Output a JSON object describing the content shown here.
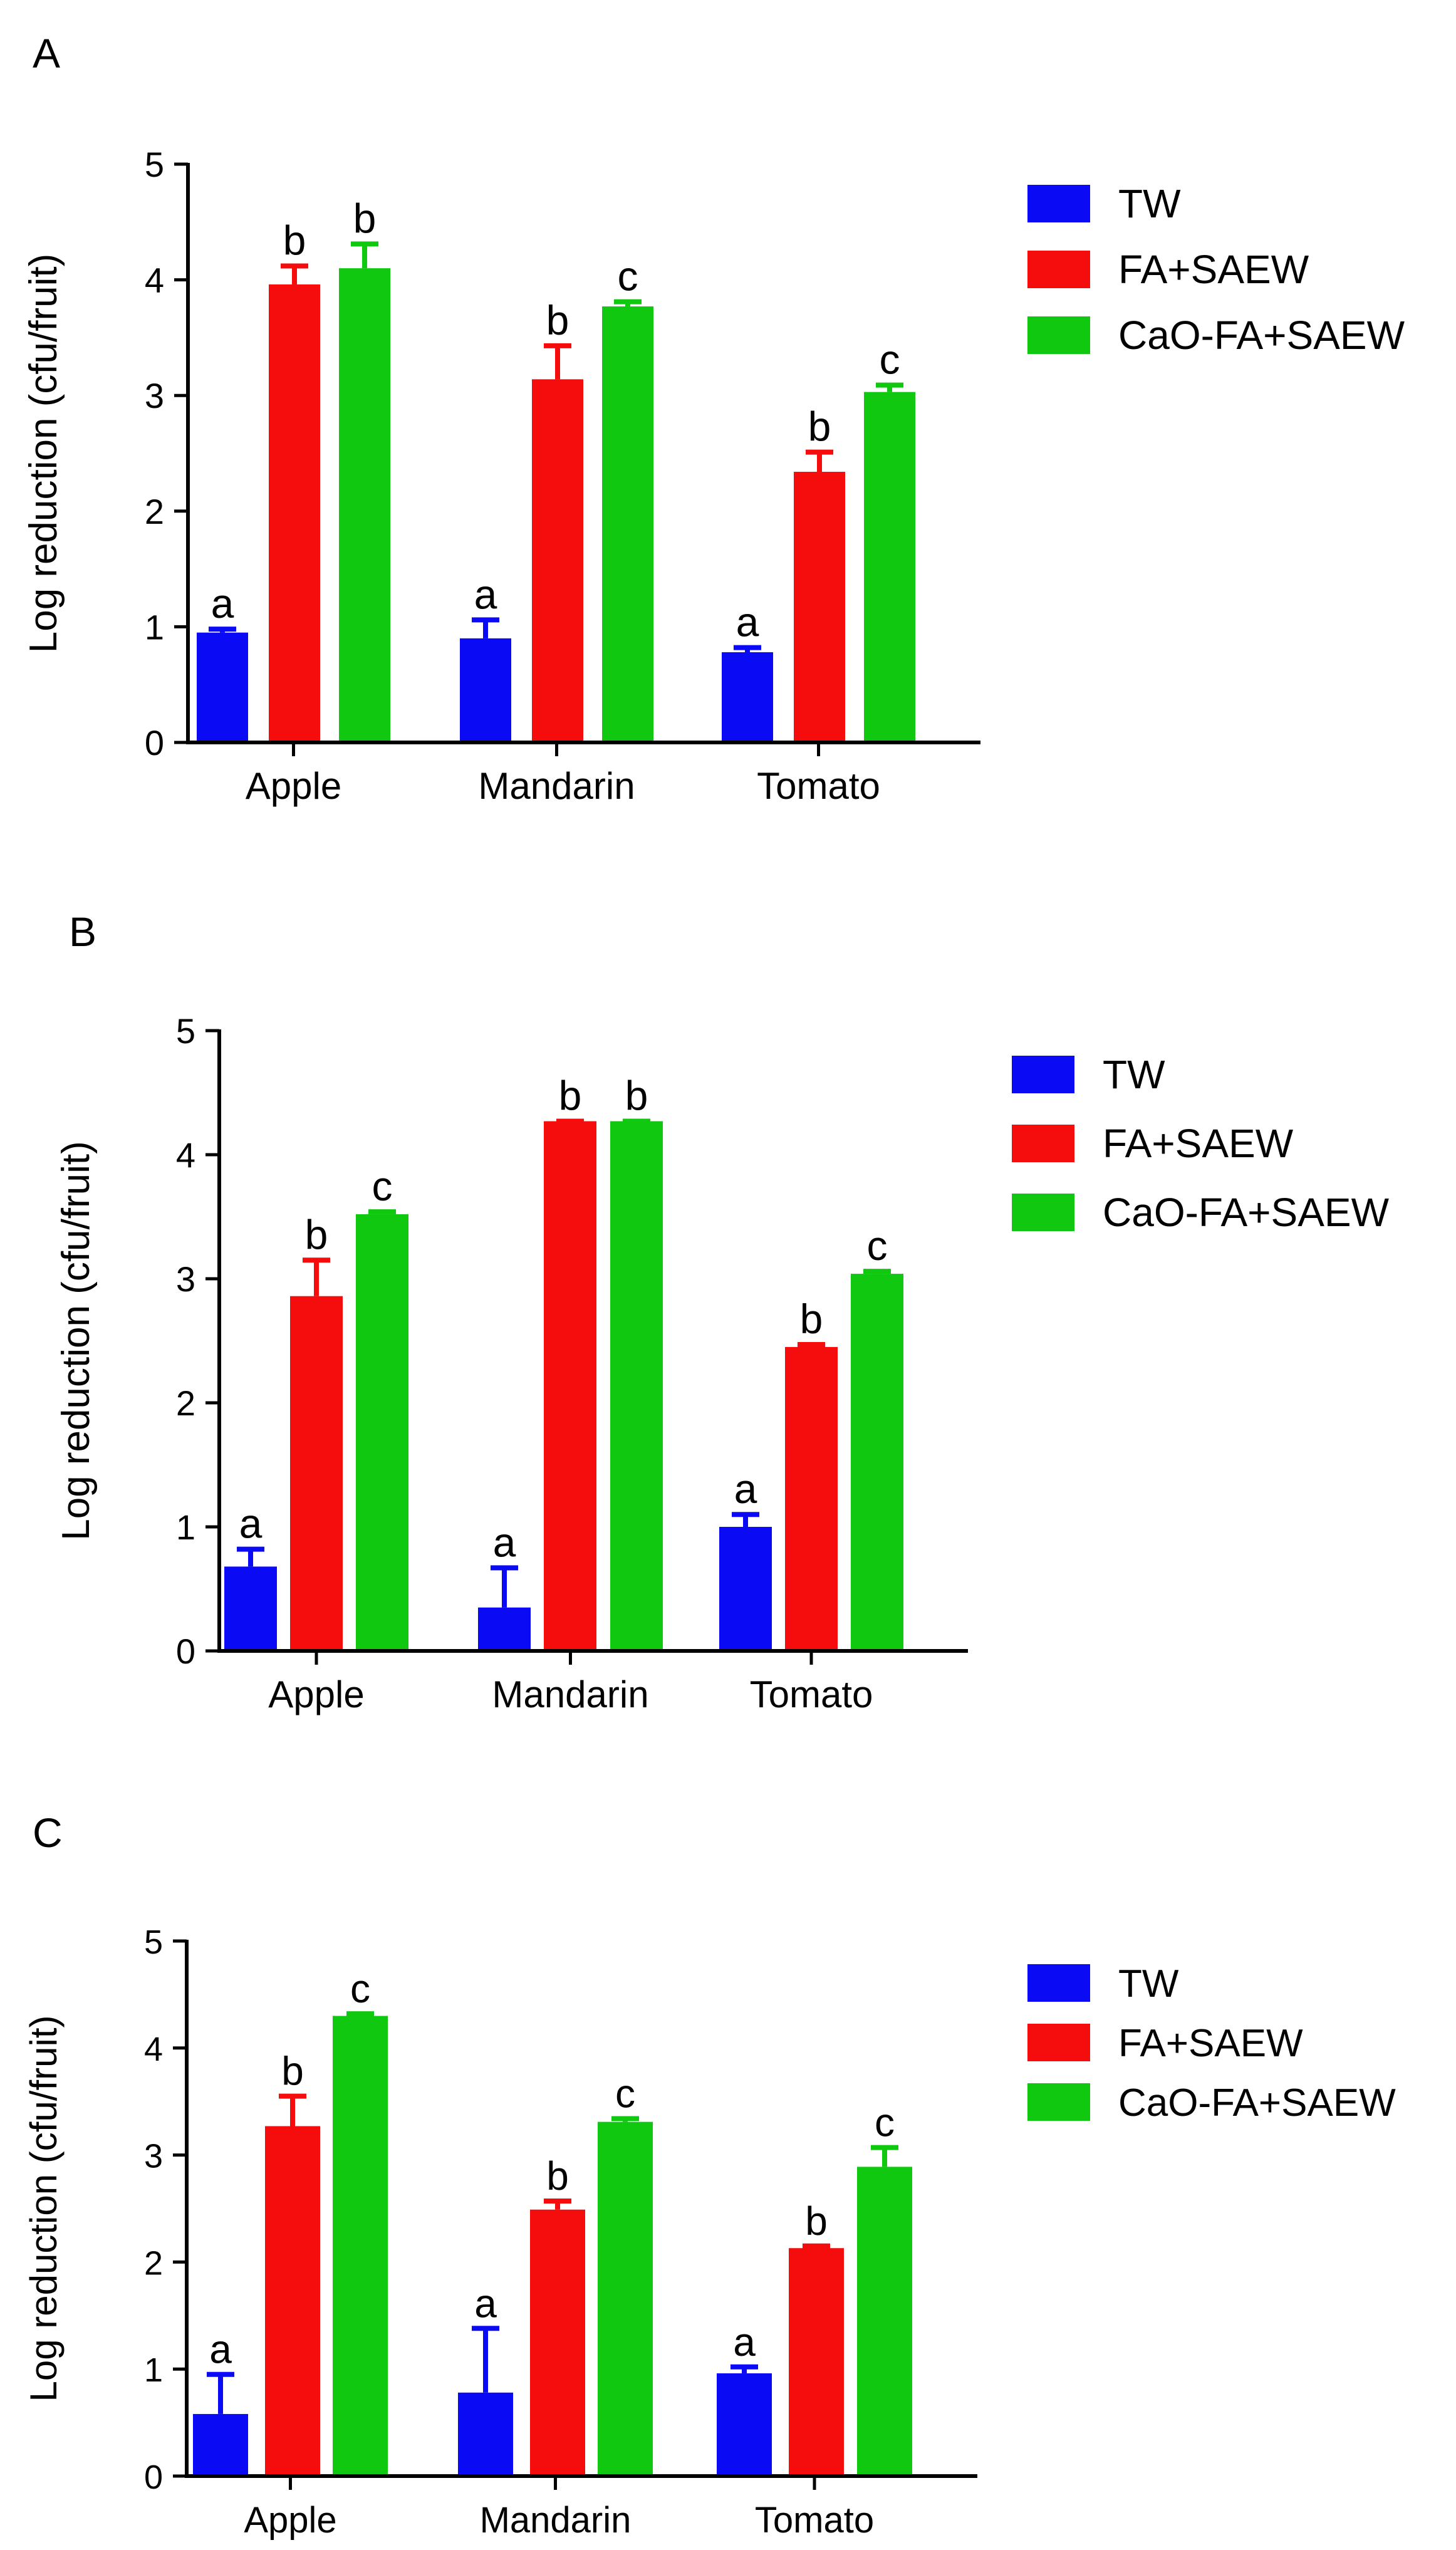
{
  "chart_data": [
    {
      "type": "bar",
      "panel_label": "A",
      "categories": [
        "Apple",
        "Mandarin",
        "Tomato"
      ],
      "ylabel": "Log reduction  (cfu/fruit)",
      "ylim": [
        0,
        5
      ],
      "yticks": [
        "0",
        "1",
        "2",
        "3",
        "4",
        "5"
      ],
      "legend_position": "top-right",
      "series": [
        {
          "name": "TW",
          "color": "#0a0af5",
          "values": [
            0.95,
            0.9,
            0.78
          ],
          "errors": [
            0.03,
            0.16,
            0.04
          ],
          "letters": [
            "a",
            "a",
            "a"
          ]
        },
        {
          "name": "FA+SAEW",
          "color": "#f50d0d",
          "values": [
            3.96,
            3.14,
            2.34
          ],
          "errors": [
            0.16,
            0.29,
            0.17
          ],
          "letters": [
            "b",
            "b",
            "b"
          ]
        },
        {
          "name": "CaO-FA+SAEW",
          "color": "#10c810",
          "values": [
            4.1,
            3.77,
            3.03
          ],
          "errors": [
            0.21,
            0.04,
            0.06
          ],
          "letters": [
            "b",
            "c",
            "c"
          ]
        }
      ]
    },
    {
      "type": "bar",
      "panel_label": "B",
      "categories": [
        "Apple",
        "Mandarin",
        "Tomato"
      ],
      "ylabel": "Log reduction  (cfu/fruit)",
      "ylim": [
        0,
        5
      ],
      "yticks": [
        "0",
        "1",
        "2",
        "3",
        "4",
        "5"
      ],
      "legend_position": "top-right",
      "series": [
        {
          "name": "TW",
          "color": "#0a0af5",
          "values": [
            0.68,
            0.35,
            1.0
          ],
          "errors": [
            0.14,
            0.32,
            0.1
          ],
          "letters": [
            "a",
            "a",
            "a"
          ]
        },
        {
          "name": "FA+SAEW",
          "color": "#f50d0d",
          "values": [
            2.86,
            4.27,
            2.45
          ],
          "errors": [
            0.29,
            0.0,
            0.02
          ],
          "letters": [
            "b",
            "b",
            "b"
          ]
        },
        {
          "name": "CaO-FA+SAEW",
          "color": "#10c810",
          "values": [
            3.52,
            4.27,
            3.04
          ],
          "errors": [
            0.02,
            0.0,
            0.02
          ],
          "letters": [
            "c",
            "b",
            "c"
          ]
        }
      ]
    },
    {
      "type": "bar",
      "panel_label": "C",
      "categories": [
        "Apple",
        "Mandarin",
        "Tomato"
      ],
      "ylabel": "Log reduction (cfu/fruit)",
      "ylim": [
        0,
        5
      ],
      "yticks": [
        "0",
        "1",
        "2",
        "3",
        "4",
        "5"
      ],
      "legend_position": "top-right",
      "series": [
        {
          "name": "TW",
          "color": "#0a0af5",
          "values": [
            0.58,
            0.78,
            0.96
          ],
          "errors": [
            0.37,
            0.6,
            0.06
          ],
          "letters": [
            "a",
            "a",
            "a"
          ]
        },
        {
          "name": "FA+SAEW",
          "color": "#f50d0d",
          "values": [
            3.27,
            2.49,
            2.13
          ],
          "errors": [
            0.28,
            0.08,
            0.02
          ],
          "letters": [
            "b",
            "b",
            "b"
          ]
        },
        {
          "name": "CaO-FA+SAEW",
          "color": "#10c810",
          "values": [
            4.3,
            3.31,
            2.89
          ],
          "errors": [
            0.02,
            0.03,
            0.18
          ],
          "letters": [
            "c",
            "c",
            "c"
          ]
        }
      ]
    }
  ]
}
